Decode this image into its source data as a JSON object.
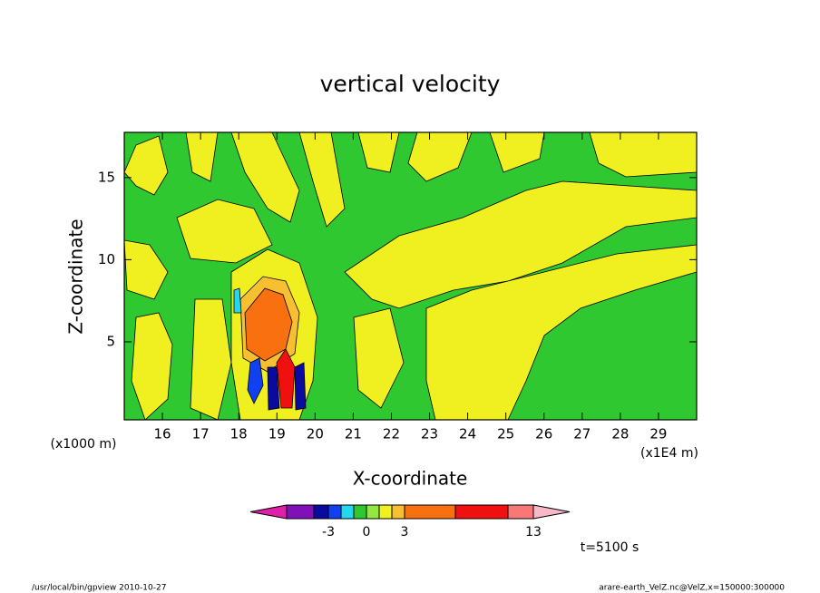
{
  "chart_data": {
    "type": "contour",
    "title": "vertical velocity",
    "x_label": "X-coordinate",
    "y_label": "Z-coordinate",
    "x_units": "(x1E4 m)",
    "y_units": "(x1000 m)",
    "xlim": [
      15,
      30
    ],
    "xticks": [
      16,
      17,
      18,
      19,
      20,
      21,
      22,
      23,
      24,
      25,
      26,
      27,
      28,
      29
    ],
    "ylim": [
      0.25,
      17.75
    ],
    "yticks": [
      5,
      10,
      15
    ],
    "colorbar": {
      "colors": [
        "#e020a8",
        "#8010b8",
        "#0a0aa0",
        "#1040f0",
        "#20d8f0",
        "#30c830",
        "#90e840",
        "#f0f020",
        "#f8c030",
        "#f87010",
        "#f01010",
        "#f87878",
        "#f8b8c8"
      ],
      "levels": [
        -5,
        -4,
        -3,
        -2,
        -1,
        0,
        1,
        2,
        3,
        5,
        10,
        13
      ],
      "ticks": [
        -3,
        0,
        3,
        13
      ]
    },
    "time_label": "t=5100 s",
    "footer_left": "/usr/local/bin/gpview   2010-10-27",
    "footer_right": "arare-earth_VelZ.nc@VelZ,x=150000:300000"
  }
}
